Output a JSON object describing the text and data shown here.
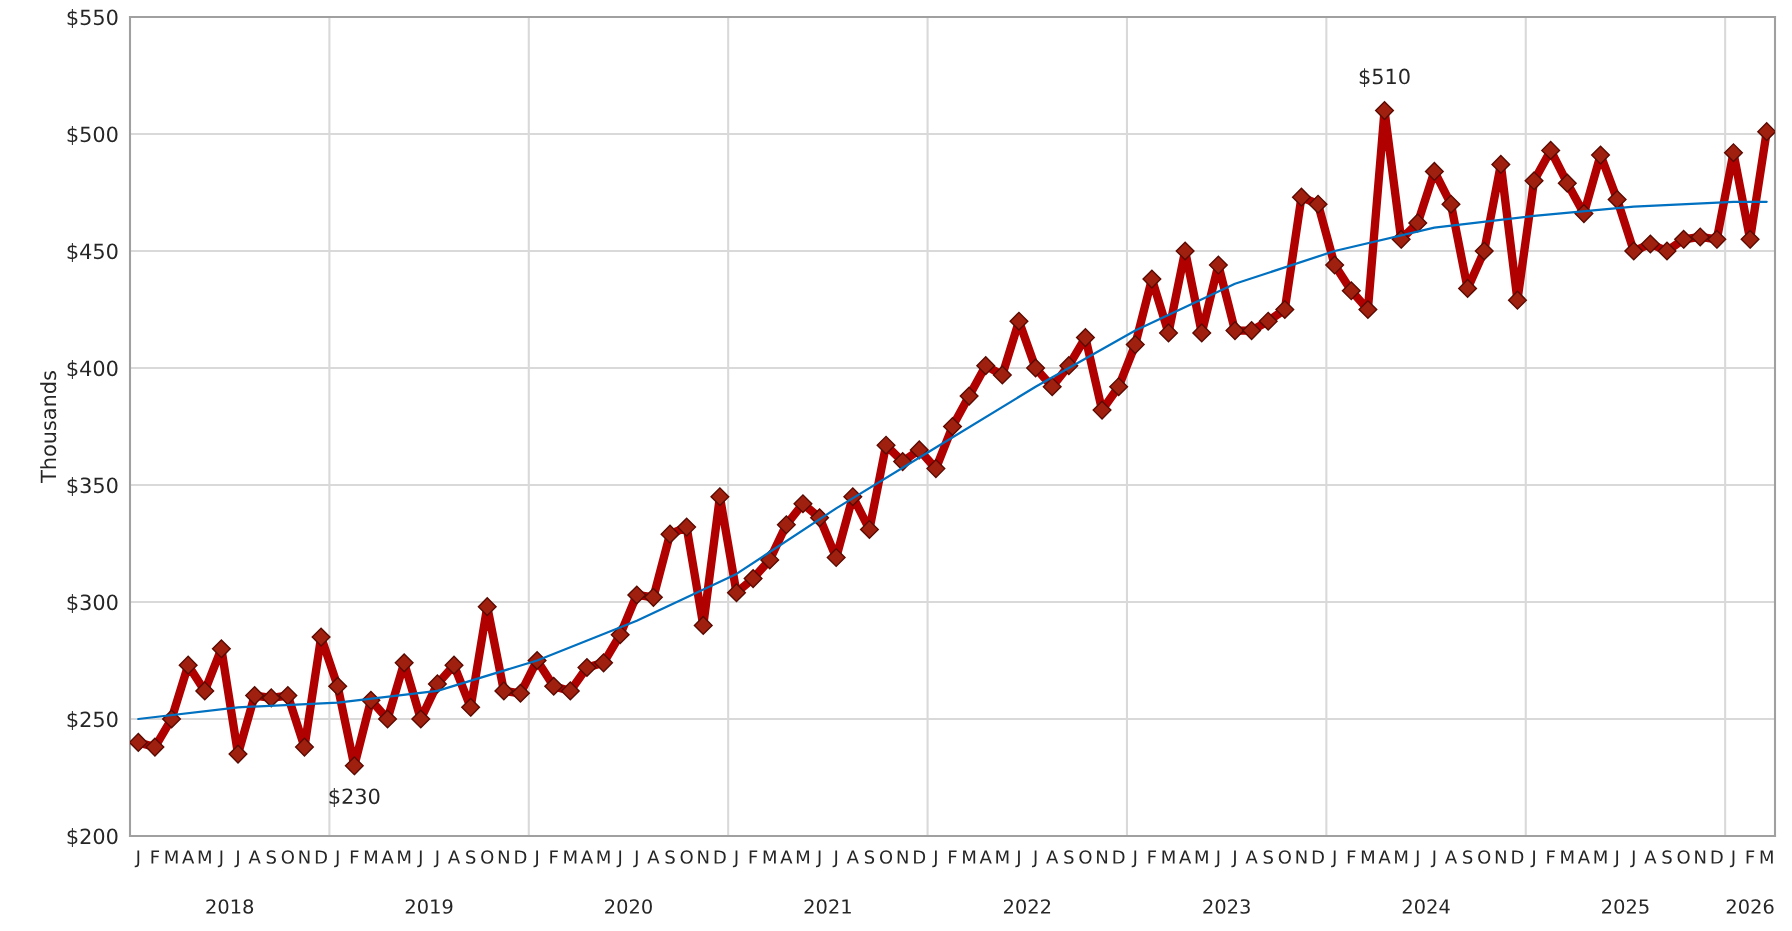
{
  "chart_data": {
    "type": "line",
    "categories": [
      "J",
      "F",
      "M",
      "A",
      "M",
      "J",
      "J",
      "A",
      "S",
      "O",
      "N",
      "D",
      "J",
      "F",
      "M",
      "A",
      "M",
      "J",
      "J",
      "A",
      "S",
      "O",
      "N",
      "D",
      "J",
      "F",
      "M",
      "A",
      "M",
      "J",
      "J",
      "A",
      "S",
      "O",
      "N",
      "D",
      "J",
      "F",
      "M",
      "A",
      "M",
      "J",
      "J",
      "A",
      "S",
      "O",
      "N",
      "D",
      "J",
      "F",
      "M",
      "A",
      "M",
      "J",
      "J",
      "A",
      "S",
      "O",
      "N",
      "D",
      "J",
      "F",
      "M",
      "A",
      "M",
      "J",
      "J",
      "A",
      "S",
      "O",
      "N",
      "D",
      "J",
      "F",
      "M",
      "A",
      "M",
      "J",
      "J",
      "A",
      "S",
      "O",
      "N",
      "D",
      "J",
      "F",
      "M",
      "A",
      "M",
      "J",
      "J",
      "A",
      "S",
      "O",
      "N",
      "D",
      "J",
      "F",
      "M"
    ],
    "series": [
      {
        "color": "#b00000",
        "marker": "diamond",
        "values": [
          240,
          238,
          250,
          273,
          262,
          280,
          235,
          260,
          259,
          260,
          238,
          285,
          264,
          230,
          258,
          250,
          274,
          250,
          265,
          273,
          255,
          298,
          262,
          261,
          275,
          264,
          262,
          272,
          274,
          286,
          303,
          302,
          329,
          332,
          290,
          345,
          304,
          310,
          318,
          333,
          342,
          336,
          319,
          345,
          331,
          367,
          360,
          365,
          357,
          375,
          388,
          401,
          397,
          420,
          400,
          392,
          401,
          413,
          382,
          392,
          410,
          438,
          415,
          450,
          415,
          444,
          416,
          416,
          420,
          425,
          473,
          470,
          444,
          433,
          425,
          510,
          455,
          462,
          484,
          470,
          434,
          450,
          487,
          429,
          480,
          493,
          479,
          466,
          491,
          472,
          450,
          453,
          450,
          455,
          456,
          455,
          492,
          455,
          501
        ]
      },
      {
        "type": "line",
        "color": "#0070c0",
        "values": [
          250,
          null,
          null,
          null,
          null,
          null,
          255,
          null,
          null,
          null,
          null,
          null,
          257,
          null,
          null,
          null,
          null,
          null,
          262,
          null,
          null,
          null,
          null,
          null,
          275,
          null,
          null,
          null,
          null,
          null,
          292,
          null,
          null,
          null,
          null,
          null,
          312,
          null,
          null,
          null,
          null,
          null,
          340,
          null,
          null,
          null,
          null,
          null,
          366,
          null,
          null,
          null,
          null,
          null,
          392,
          null,
          null,
          null,
          null,
          null,
          416,
          null,
          null,
          null,
          null,
          null,
          436,
          null,
          null,
          null,
          null,
          null,
          450,
          null,
          null,
          null,
          null,
          null,
          460,
          null,
          null,
          null,
          null,
          null,
          465,
          null,
          null,
          null,
          null,
          null,
          469,
          null,
          null,
          null,
          null,
          null,
          471,
          null,
          471
        ]
      }
    ],
    "ylim": [
      200,
      550
    ],
    "yticks": [
      {
        "value": 200,
        "label": "$200"
      },
      {
        "value": 250,
        "label": "$250"
      },
      {
        "value": 300,
        "label": "$300"
      },
      {
        "value": 350,
        "label": "$350"
      },
      {
        "value": 400,
        "label": "$400"
      },
      {
        "value": 450,
        "label": "$450"
      },
      {
        "value": 500,
        "label": "$500"
      },
      {
        "value": 550,
        "label": "$550"
      }
    ],
    "ylabel": "Thousands",
    "grid": true,
    "annotations": [
      {
        "text": "$230",
        "y": 230
      },
      {
        "text": "$510",
        "y": 510
      },
      "2018",
      "2019",
      "2020",
      "2021",
      "2022",
      "2023",
      "2024",
      "2025",
      "2026"
    ]
  }
}
